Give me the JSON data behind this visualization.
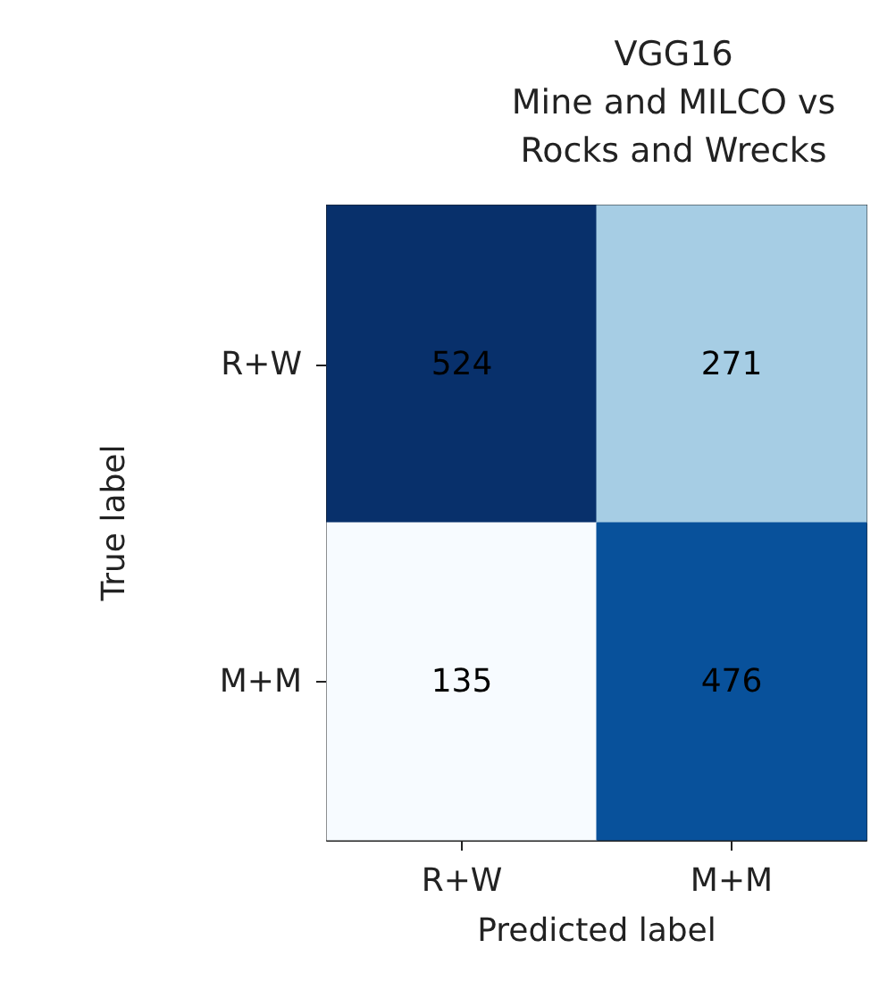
{
  "chart_data": {
    "type": "heatmap",
    "title": "VGG16\nMine and MILCO vs\nRocks and Wrecks",
    "xlabel": "Predicted label",
    "ylabel": "True label",
    "categories": [
      "R+W",
      "M+M"
    ],
    "y_categories": [
      "R+W",
      "M+M"
    ],
    "cells": [
      [
        524,
        271
      ],
      [
        135,
        476
      ]
    ],
    "data_labels": true
  }
}
